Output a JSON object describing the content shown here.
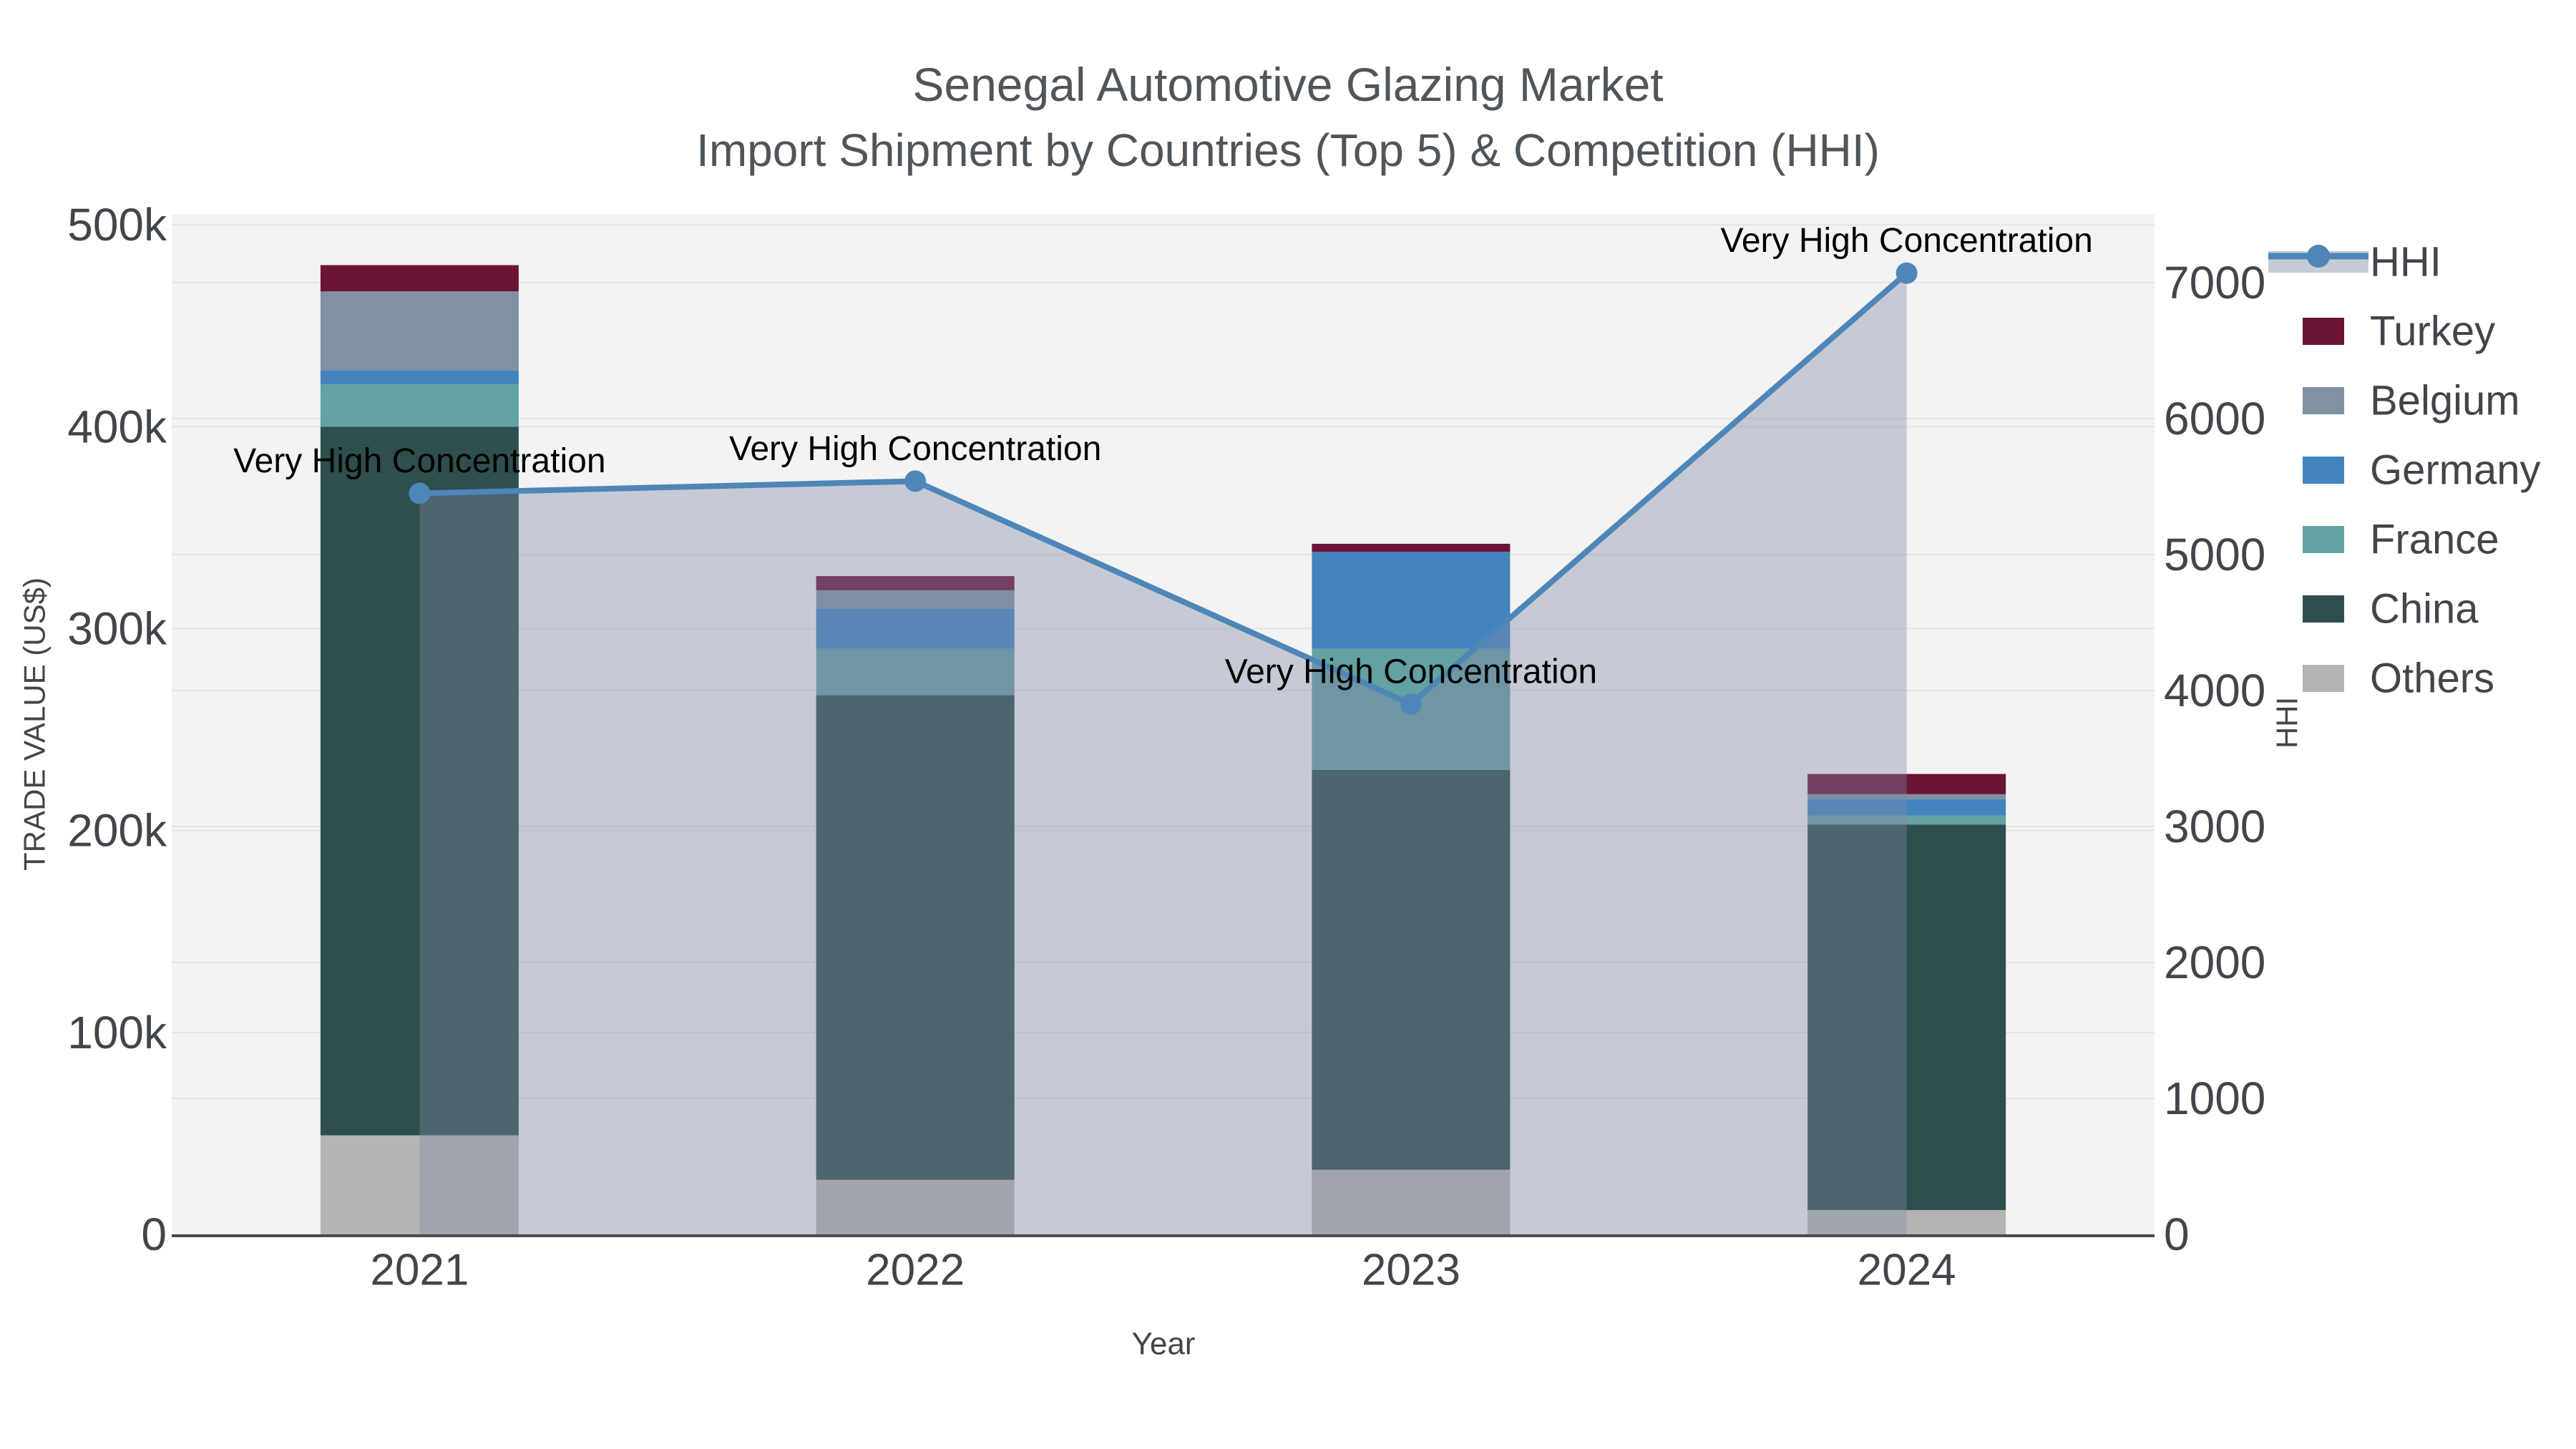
{
  "title": {
    "line1": "Senegal Automotive Glazing Market",
    "line2": "Import Shipment by Countries (Top 5) & Competition (HHI)"
  },
  "chart_data": {
    "type": "bar+line",
    "categories": [
      "2021",
      "2022",
      "2023",
      "2024"
    ],
    "xlabel": "Year",
    "ylabel_left": "TRADE VALUE (US$)",
    "ylabel_right": "HHI",
    "ylim_left": [
      0,
      505000
    ],
    "ylim_right": [
      0,
      7500
    ],
    "yticks_left": [
      {
        "value": 0,
        "label": "0"
      },
      {
        "value": 100000,
        "label": "100k"
      },
      {
        "value": 200000,
        "label": "200k"
      },
      {
        "value": 300000,
        "label": "300k"
      },
      {
        "value": 400000,
        "label": "400k"
      },
      {
        "value": 500000,
        "label": "500k"
      }
    ],
    "yticks_right": [
      {
        "value": 0,
        "label": "0"
      },
      {
        "value": 1000,
        "label": "1000"
      },
      {
        "value": 2000,
        "label": "2000"
      },
      {
        "value": 3000,
        "label": "3000"
      },
      {
        "value": 4000,
        "label": "4000"
      },
      {
        "value": 5000,
        "label": "5000"
      },
      {
        "value": 6000,
        "label": "6000"
      },
      {
        "value": 7000,
        "label": "7000"
      }
    ],
    "series": [
      {
        "name": "Others",
        "color": "#b3b5b4",
        "values": [
          49000,
          27000,
          32000,
          12000
        ]
      },
      {
        "name": "China",
        "color": "#2e4f4e",
        "values": [
          351000,
          240000,
          198000,
          191000
        ]
      },
      {
        "name": "France",
        "color": "#64a1a3",
        "values": [
          21000,
          23000,
          60000,
          4500
        ]
      },
      {
        "name": "Germany",
        "color": "#4484be",
        "values": [
          7000,
          20000,
          48000,
          8000
        ]
      },
      {
        "name": "Belgium",
        "color": "#8091a4",
        "values": [
          39000,
          9000,
          0,
          2500
        ]
      },
      {
        "name": "Turkey",
        "color": "#6b1437",
        "values": [
          13000,
          7000,
          4000,
          10000
        ]
      }
    ],
    "line_series": {
      "name": "HHI",
      "axis": "right",
      "color": "#4e86b8",
      "area_color": "rgba(126,137,162,0.38)",
      "values": [
        5450,
        5540,
        3900,
        7070
      ]
    },
    "annotations": [
      {
        "x": "2021",
        "text": "Very High Concentration"
      },
      {
        "x": "2022",
        "text": "Very High Concentration"
      },
      {
        "x": "2023",
        "text": "Very High Concentration"
      },
      {
        "x": "2024",
        "text": "Very High Concentration"
      }
    ],
    "legend": [
      {
        "name": "HHI",
        "kind": "line",
        "color": "#4e86b8"
      },
      {
        "name": "Turkey",
        "kind": "swatch",
        "color": "#6b1437"
      },
      {
        "name": "Belgium",
        "kind": "swatch",
        "color": "#8091a4"
      },
      {
        "name": "Germany",
        "kind": "swatch",
        "color": "#4484be"
      },
      {
        "name": "France",
        "kind": "swatch",
        "color": "#64a1a3"
      },
      {
        "name": "China",
        "kind": "swatch",
        "color": "#2e4f4e"
      },
      {
        "name": "Others",
        "kind": "swatch",
        "color": "#b3b5b4"
      }
    ],
    "legend_position": "right",
    "grid": true
  },
  "colors": {
    "plot_background": "#f3f3f3",
    "paper_background": "#ffffff",
    "gridline": "#e4e4e4",
    "axis_line": "#4a4a4a",
    "tick_text": "#424549",
    "title_text": "#50555a",
    "annotation_text": "#000000",
    "legend_band": "#c6cbd4"
  }
}
